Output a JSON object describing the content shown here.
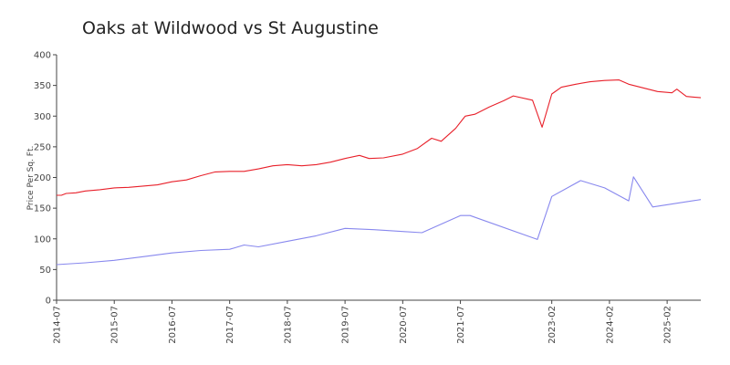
{
  "chart_data": {
    "type": "line",
    "title": "Oaks at Wildwood vs St Augustine",
    "xlabel": "",
    "ylabel": "Price Per Sq. Ft.",
    "ylim": [
      0,
      400
    ],
    "yticks": [
      0,
      50,
      100,
      150,
      200,
      250,
      300,
      350,
      400
    ],
    "xrange": [
      "2014-07",
      "2025-09"
    ],
    "xticks": [
      "2014-07",
      "2015-07",
      "2016-07",
      "2017-07",
      "2018-07",
      "2019-07",
      "2020-07",
      "2021-07",
      "2023-02",
      "2024-02",
      "2025-02"
    ],
    "grid": false,
    "legend": "none",
    "series": [
      {
        "color": "#e8202a",
        "points": [
          [
            "2014-07",
            171
          ],
          [
            "2014-08",
            171
          ],
          [
            "2014-09",
            174
          ],
          [
            "2014-11",
            175
          ],
          [
            "2015-01",
            178
          ],
          [
            "2015-04",
            180
          ],
          [
            "2015-07",
            183
          ],
          [
            "2015-10",
            184
          ],
          [
            "2016-01",
            186
          ],
          [
            "2016-04",
            188
          ],
          [
            "2016-07",
            193
          ],
          [
            "2016-10",
            196
          ],
          [
            "2017-01",
            203
          ],
          [
            "2017-04",
            209
          ],
          [
            "2017-07",
            210
          ],
          [
            "2017-10",
            210
          ],
          [
            "2018-01",
            214
          ],
          [
            "2018-04",
            219
          ],
          [
            "2018-07",
            221
          ],
          [
            "2018-10",
            219
          ],
          [
            "2019-01",
            221
          ],
          [
            "2019-04",
            225
          ],
          [
            "2019-07",
            231
          ],
          [
            "2019-10",
            236
          ],
          [
            "2019-12",
            231
          ],
          [
            "2020-03",
            232
          ],
          [
            "2020-07",
            238
          ],
          [
            "2020-10",
            247
          ],
          [
            "2021-01",
            264
          ],
          [
            "2021-03",
            259
          ],
          [
            "2021-06",
            280
          ],
          [
            "2021-08",
            300
          ],
          [
            "2021-10",
            303
          ],
          [
            "2022-01",
            315
          ],
          [
            "2022-04",
            325
          ],
          [
            "2022-06",
            333
          ],
          [
            "2022-10",
            326
          ],
          [
            "2022-12",
            282
          ],
          [
            "2023-02",
            336
          ],
          [
            "2023-04",
            347
          ],
          [
            "2023-07",
            352
          ],
          [
            "2023-10",
            356
          ],
          [
            "2024-01",
            358
          ],
          [
            "2024-04",
            359
          ],
          [
            "2024-06",
            352
          ],
          [
            "2024-09",
            346
          ],
          [
            "2024-12",
            340
          ],
          [
            "2025-03",
            338
          ],
          [
            "2025-04",
            344
          ],
          [
            "2025-06",
            332
          ],
          [
            "2025-09",
            330
          ]
        ]
      },
      {
        "color": "#8888ee",
        "points": [
          [
            "2014-07",
            58
          ],
          [
            "2015-01",
            61
          ],
          [
            "2015-07",
            65
          ],
          [
            "2016-01",
            71
          ],
          [
            "2016-07",
            77
          ],
          [
            "2017-01",
            81
          ],
          [
            "2017-07",
            83
          ],
          [
            "2017-10",
            90
          ],
          [
            "2018-01",
            87
          ],
          [
            "2018-07",
            96
          ],
          [
            "2019-01",
            105
          ],
          [
            "2019-07",
            117
          ],
          [
            "2020-01",
            115
          ],
          [
            "2020-07",
            112
          ],
          [
            "2020-11",
            110
          ],
          [
            "2021-07",
            138
          ],
          [
            "2021-09",
            138
          ],
          [
            "2022-11",
            99
          ],
          [
            "2023-02",
            169
          ],
          [
            "2023-08",
            195
          ],
          [
            "2024-01",
            183
          ],
          [
            "2024-06",
            162
          ],
          [
            "2024-07",
            201
          ],
          [
            "2024-11",
            152
          ],
          [
            "2025-09",
            164
          ]
        ]
      }
    ]
  }
}
